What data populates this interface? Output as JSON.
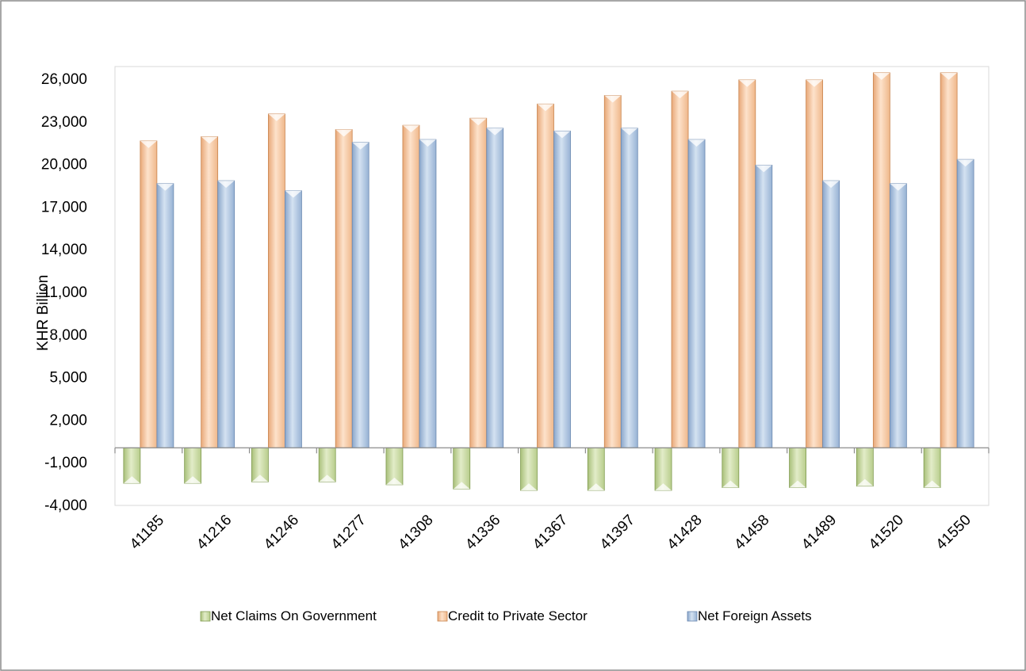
{
  "chart_data": {
    "type": "bar",
    "title": "",
    "xlabel": "",
    "ylabel": "KHR Billion",
    "ylim": [
      -4000,
      27000
    ],
    "yticks": [
      -4000,
      -1000,
      2000,
      5000,
      8000,
      11000,
      14000,
      17000,
      20000,
      23000,
      26000
    ],
    "ytick_labels": [
      "-4,000",
      "-1,000",
      "2,000",
      "5,000",
      "8,000",
      "11,000",
      "14,000",
      "17,000",
      "20,000",
      "23,000",
      "26,000"
    ],
    "categories": [
      "41185",
      "41216",
      "41246",
      "41277",
      "41308",
      "41336",
      "41367",
      "41397",
      "41428",
      "41458",
      "41489",
      "41520",
      "41550"
    ],
    "grid": false,
    "legend_position": "bottom",
    "series": [
      {
        "name": "Net Claims On Government",
        "color": "#c4d79b",
        "values": [
          -2500,
          -2500,
          -2400,
          -2400,
          -2600,
          -2900,
          -3000,
          -3000,
          -3000,
          -2800,
          -2800,
          -2700,
          -2800
        ]
      },
      {
        "name": "Credit to Private Sector",
        "color": "#f7c7a0",
        "values": [
          21600,
          21900,
          23500,
          22400,
          22700,
          23200,
          24200,
          24800,
          25100,
          25900,
          25900,
          26400,
          26400
        ]
      },
      {
        "name": "Net Foreign Assets",
        "color": "#a7bfdc",
        "values": [
          18600,
          18800,
          18100,
          21500,
          21700,
          22500,
          22300,
          22500,
          21700,
          19900,
          18800,
          18600,
          20300
        ]
      }
    ]
  }
}
